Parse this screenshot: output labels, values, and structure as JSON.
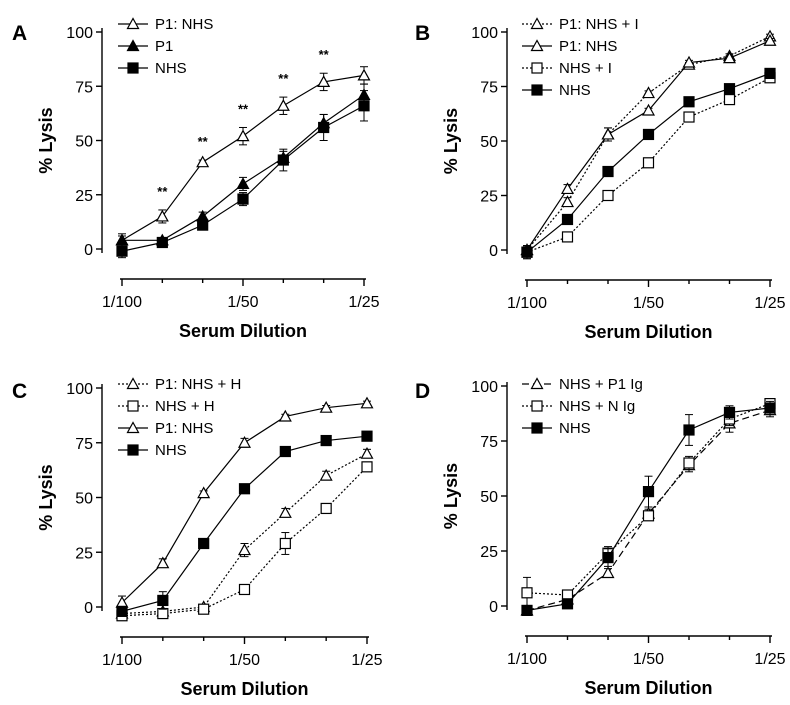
{
  "chart_data": [
    {
      "panel": "A",
      "type": "line",
      "xlabel": "Serum Dilution",
      "ylabel": "% Lysis",
      "xticks": [
        "1/100",
        "1/50",
        "1/25"
      ],
      "yticks": [
        "0",
        "25",
        "50",
        "75",
        "100"
      ],
      "ylim": [
        0,
        100
      ],
      "legend_position": "top-left",
      "annotations": [
        "**",
        "**",
        "**",
        "**",
        "**"
      ],
      "series": [
        {
          "name": "P1: NHS",
          "marker": "triangle-open",
          "dash": "solid",
          "values": [
            4,
            15,
            40,
            52,
            66,
            77,
            80
          ],
          "errors": [
            3,
            3,
            1,
            4,
            4,
            4,
            4
          ]
        },
        {
          "name": "P1",
          "marker": "triangle-filled",
          "dash": "solid",
          "values": [
            4,
            4,
            15,
            30,
            42,
            58,
            71
          ],
          "errors": [
            2,
            1,
            2,
            3,
            3,
            4,
            5
          ]
        },
        {
          "name": "NHS",
          "marker": "square-filled",
          "dash": "solid",
          "values": [
            -1,
            3,
            11,
            23,
            41,
            56,
            66
          ],
          "errors": [
            3,
            1,
            2,
            3,
            5,
            6,
            7
          ]
        }
      ]
    },
    {
      "panel": "B",
      "type": "line",
      "xlabel": "Serum Dilution",
      "ylabel": "% Lysis",
      "xticks": [
        "1/100",
        "1/50",
        "1/25"
      ],
      "yticks": [
        "0",
        "25",
        "50",
        "75",
        "100"
      ],
      "ylim": [
        0,
        100
      ],
      "legend_position": "top-left",
      "series": [
        {
          "name": "P1: NHS + I",
          "marker": "triangle-open",
          "dash": "dotted",
          "values": [
            0,
            22,
            53,
            72,
            85,
            89,
            98
          ],
          "errors": [
            2,
            2,
            3,
            1,
            1,
            1,
            1
          ]
        },
        {
          "name": "P1: NHS",
          "marker": "triangle-open",
          "dash": "solid",
          "values": [
            0,
            28,
            53,
            64,
            86,
            88,
            96
          ],
          "errors": [
            2,
            2,
            3,
            1,
            1,
            1,
            1
          ]
        },
        {
          "name": "NHS + I",
          "marker": "square-open",
          "dash": "dotted",
          "values": [
            -1,
            6,
            25,
            40,
            61,
            69,
            79
          ],
          "errors": [
            3,
            1,
            2,
            2,
            1,
            1,
            1
          ]
        },
        {
          "name": "NHS",
          "marker": "square-filled",
          "dash": "solid",
          "values": [
            -1,
            14,
            36,
            53,
            68,
            74,
            81
          ],
          "errors": [
            3,
            2,
            2,
            2,
            1,
            1,
            1
          ]
        }
      ]
    },
    {
      "panel": "C",
      "type": "line",
      "xlabel": "Serum Dilution",
      "ylabel": "% Lysis",
      "xticks": [
        "1/100",
        "1/50",
        "1/25"
      ],
      "yticks": [
        "0",
        "25",
        "50",
        "75",
        "100"
      ],
      "ylim": [
        0,
        100
      ],
      "legend_position": "top-left",
      "series": [
        {
          "name": "P1: NHS + H",
          "marker": "triangle-open",
          "dash": "dotted",
          "values": [
            -3,
            -2,
            0,
            26,
            43,
            60,
            70
          ],
          "errors": [
            1,
            1,
            1,
            3,
            2,
            2,
            2
          ]
        },
        {
          "name": "NHS + H",
          "marker": "square-open",
          "dash": "dotted",
          "values": [
            -4,
            -3,
            -1,
            8,
            29,
            45,
            64
          ],
          "errors": [
            1,
            1,
            1,
            1,
            5,
            1,
            2
          ]
        },
        {
          "name": "P1: NHS",
          "marker": "triangle-open",
          "dash": "solid",
          "values": [
            2,
            20,
            52,
            75,
            87,
            91,
            93
          ],
          "errors": [
            3,
            2,
            1,
            2,
            1,
            1,
            1
          ]
        },
        {
          "name": "NHS",
          "marker": "square-filled",
          "dash": "solid",
          "values": [
            -2,
            3,
            29,
            54,
            71,
            76,
            78
          ],
          "errors": [
            2,
            4,
            1,
            1,
            2,
            1,
            2
          ]
        }
      ]
    },
    {
      "panel": "D",
      "type": "line",
      "xlabel": "Serum Dilution",
      "ylabel": "% Lysis",
      "xticks": [
        "1/100",
        "1/50",
        "1/25"
      ],
      "yticks": [
        "0",
        "25",
        "50",
        "75",
        "100"
      ],
      "ylim": [
        0,
        100
      ],
      "legend_position": "top-left",
      "series": [
        {
          "name": "NHS + P1 Ig",
          "marker": "triangle-open",
          "dash": "dashed",
          "values": [
            -2,
            3,
            15,
            42,
            64,
            83,
            89
          ],
          "errors": [
            2,
            2,
            2,
            2,
            3,
            4,
            3
          ]
        },
        {
          "name": "NHS + N Ig",
          "marker": "square-open",
          "dash": "dotted",
          "values": [
            6,
            5,
            24,
            41,
            65,
            85,
            92
          ],
          "errors": [
            7,
            2,
            3,
            2,
            3,
            3,
            2
          ]
        },
        {
          "name": "NHS",
          "marker": "square-filled",
          "dash": "solid",
          "values": [
            -2,
            1,
            22,
            52,
            80,
            88,
            90
          ],
          "errors": [
            2,
            2,
            4,
            7,
            7,
            3,
            3
          ]
        }
      ]
    }
  ]
}
